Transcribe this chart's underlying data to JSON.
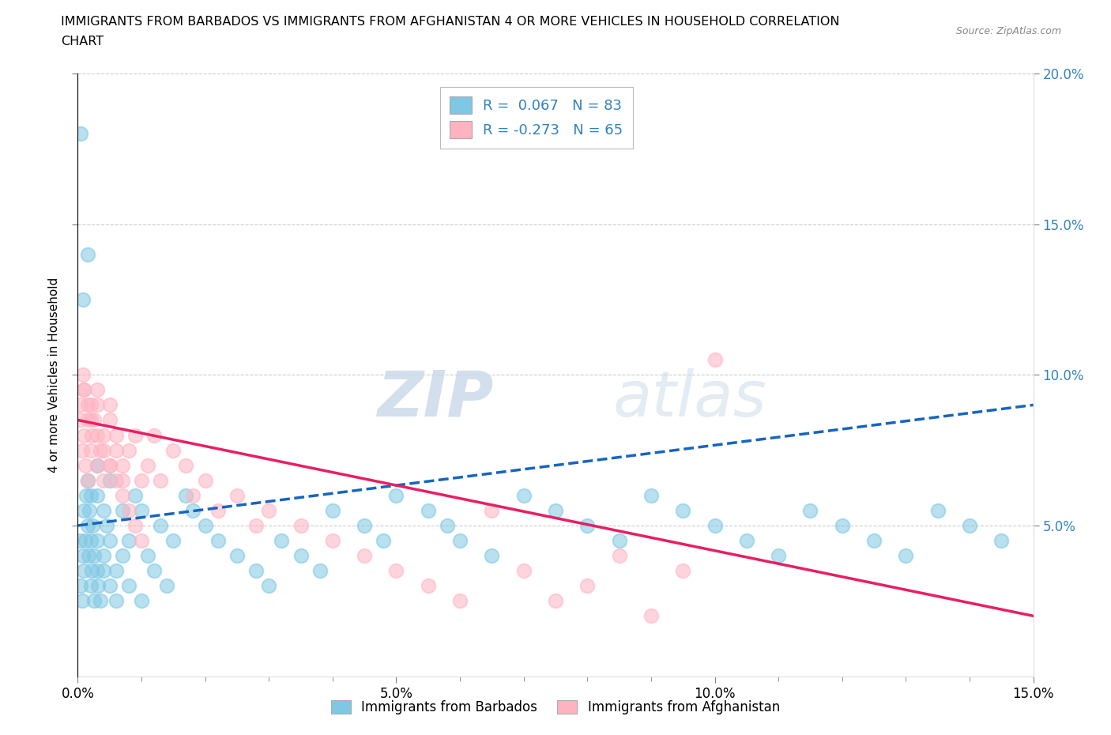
{
  "title_line1": "IMMIGRANTS FROM BARBADOS VS IMMIGRANTS FROM AFGHANISTAN 4 OR MORE VEHICLES IN HOUSEHOLD CORRELATION",
  "title_line2": "CHART",
  "source": "Source: ZipAtlas.com",
  "xlabel_barbados": "Immigrants from Barbados",
  "xlabel_afghanistan": "Immigrants from Afghanistan",
  "ylabel": "4 or more Vehicles in Household",
  "xlim": [
    0.0,
    0.15
  ],
  "ylim": [
    0.0,
    0.2
  ],
  "xtick_labels": [
    "0.0%",
    "",
    "",
    "",
    "",
    "5.0%",
    "",
    "",
    "",
    "",
    "10.0%",
    "",
    "",
    "",
    "",
    "15.0%"
  ],
  "xtick_values": [
    0.0,
    0.01,
    0.02,
    0.03,
    0.04,
    0.05,
    0.06,
    0.07,
    0.08,
    0.09,
    0.1,
    0.11,
    0.12,
    0.13,
    0.14,
    0.15
  ],
  "ytick_right_labels": [
    "5.0%",
    "10.0%",
    "15.0%",
    "20.0%"
  ],
  "ytick_values": [
    0.05,
    0.1,
    0.15,
    0.2
  ],
  "R_barbados": 0.067,
  "N_barbados": 83,
  "R_afghanistan": -0.273,
  "N_afghanistan": 65,
  "color_barbados": "#7ec8e3",
  "color_afghanistan": "#ffb3c1",
  "color_trendline_barbados": "#1565c0",
  "color_trendline_afghanistan": "#e91e63",
  "color_axis_right": "#3182bd",
  "background_color": "#ffffff",
  "barbados_x": [
    0.0003,
    0.0005,
    0.0007,
    0.0008,
    0.001,
    0.001,
    0.0012,
    0.0013,
    0.0015,
    0.0015,
    0.0017,
    0.0018,
    0.002,
    0.002,
    0.002,
    0.0022,
    0.0023,
    0.0025,
    0.0025,
    0.003,
    0.003,
    0.003,
    0.003,
    0.0032,
    0.0035,
    0.004,
    0.004,
    0.004,
    0.0045,
    0.005,
    0.005,
    0.005,
    0.006,
    0.006,
    0.007,
    0.007,
    0.008,
    0.008,
    0.009,
    0.01,
    0.01,
    0.011,
    0.012,
    0.013,
    0.014,
    0.015,
    0.017,
    0.018,
    0.02,
    0.022,
    0.025,
    0.028,
    0.03,
    0.032,
    0.035,
    0.038,
    0.04,
    0.045,
    0.048,
    0.05,
    0.055,
    0.058,
    0.06,
    0.065,
    0.07,
    0.075,
    0.08,
    0.085,
    0.09,
    0.095,
    0.1,
    0.105,
    0.11,
    0.115,
    0.12,
    0.125,
    0.13,
    0.135,
    0.14,
    0.145,
    0.0005,
    0.0008,
    0.0015
  ],
  "barbados_y": [
    0.045,
    0.03,
    0.025,
    0.04,
    0.055,
    0.035,
    0.045,
    0.06,
    0.05,
    0.065,
    0.04,
    0.055,
    0.03,
    0.045,
    0.06,
    0.035,
    0.05,
    0.025,
    0.04,
    0.07,
    0.035,
    0.045,
    0.06,
    0.03,
    0.025,
    0.055,
    0.04,
    0.035,
    0.05,
    0.065,
    0.03,
    0.045,
    0.025,
    0.035,
    0.055,
    0.04,
    0.03,
    0.045,
    0.06,
    0.025,
    0.055,
    0.04,
    0.035,
    0.05,
    0.03,
    0.045,
    0.06,
    0.055,
    0.05,
    0.045,
    0.04,
    0.035,
    0.03,
    0.045,
    0.04,
    0.035,
    0.055,
    0.05,
    0.045,
    0.06,
    0.055,
    0.05,
    0.045,
    0.04,
    0.06,
    0.055,
    0.05,
    0.045,
    0.06,
    0.055,
    0.05,
    0.045,
    0.04,
    0.055,
    0.05,
    0.045,
    0.04,
    0.055,
    0.05,
    0.045,
    0.18,
    0.125,
    0.14
  ],
  "afghanistan_x": [
    0.0003,
    0.0005,
    0.0007,
    0.001,
    0.001,
    0.0012,
    0.0015,
    0.0015,
    0.002,
    0.002,
    0.0022,
    0.0025,
    0.003,
    0.003,
    0.003,
    0.0035,
    0.004,
    0.004,
    0.005,
    0.005,
    0.005,
    0.006,
    0.006,
    0.007,
    0.007,
    0.008,
    0.009,
    0.01,
    0.011,
    0.012,
    0.013,
    0.015,
    0.017,
    0.018,
    0.02,
    0.022,
    0.025,
    0.028,
    0.03,
    0.035,
    0.04,
    0.045,
    0.05,
    0.055,
    0.06,
    0.065,
    0.07,
    0.075,
    0.08,
    0.09,
    0.0008,
    0.001,
    0.0015,
    0.002,
    0.003,
    0.004,
    0.005,
    0.006,
    0.007,
    0.008,
    0.009,
    0.01,
    0.085,
    0.095,
    0.1
  ],
  "afghanistan_y": [
    0.085,
    0.09,
    0.075,
    0.095,
    0.08,
    0.07,
    0.085,
    0.065,
    0.09,
    0.075,
    0.08,
    0.085,
    0.09,
    0.07,
    0.095,
    0.075,
    0.08,
    0.065,
    0.09,
    0.07,
    0.085,
    0.075,
    0.08,
    0.065,
    0.07,
    0.075,
    0.08,
    0.065,
    0.07,
    0.08,
    0.065,
    0.075,
    0.07,
    0.06,
    0.065,
    0.055,
    0.06,
    0.05,
    0.055,
    0.05,
    0.045,
    0.04,
    0.035,
    0.03,
    0.025,
    0.055,
    0.035,
    0.025,
    0.03,
    0.02,
    0.1,
    0.095,
    0.09,
    0.085,
    0.08,
    0.075,
    0.07,
    0.065,
    0.06,
    0.055,
    0.05,
    0.045,
    0.04,
    0.035,
    0.105
  ]
}
